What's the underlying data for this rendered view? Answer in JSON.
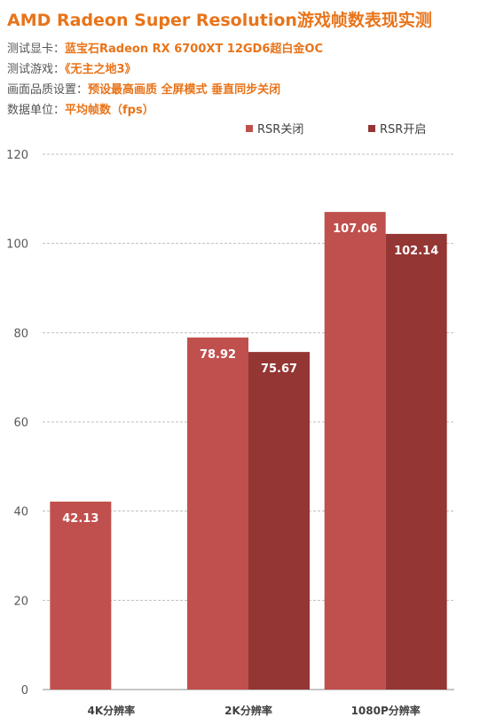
{
  "header": {
    "title": "AMD Radeon Super Resolution游戏帧数表现实测",
    "info": [
      {
        "label": "测试显卡：",
        "value": "蓝宝石Radeon RX 6700XT 12GD6超白金OC"
      },
      {
        "label": "测试游戏：",
        "value": "《无主之地3》"
      },
      {
        "label": "画面品质设置：",
        "value": "预设最高画质 全屏模式 垂直同步关闭"
      },
      {
        "label": "数据单位：",
        "value": "平均帧数（fps）"
      }
    ]
  },
  "colors": {
    "accent": "#E8741A",
    "series": [
      "#C0504D",
      "#943634"
    ]
  },
  "chart_data": {
    "type": "bar",
    "categories": [
      "4K分辨率",
      "2K分辨率",
      "1080P分辨率"
    ],
    "series": [
      {
        "name": "RSR关闭",
        "values": [
          42.13,
          78.92,
          107.06
        ]
      },
      {
        "name": "RSR开启",
        "values": [
          null,
          75.67,
          102.14
        ]
      }
    ],
    "ylim": [
      0,
      120
    ],
    "yticks": [
      0,
      20,
      40,
      60,
      80,
      100,
      120
    ],
    "grid": true,
    "legend": "top-right",
    "title": "",
    "xlabel": "",
    "ylabel": ""
  }
}
